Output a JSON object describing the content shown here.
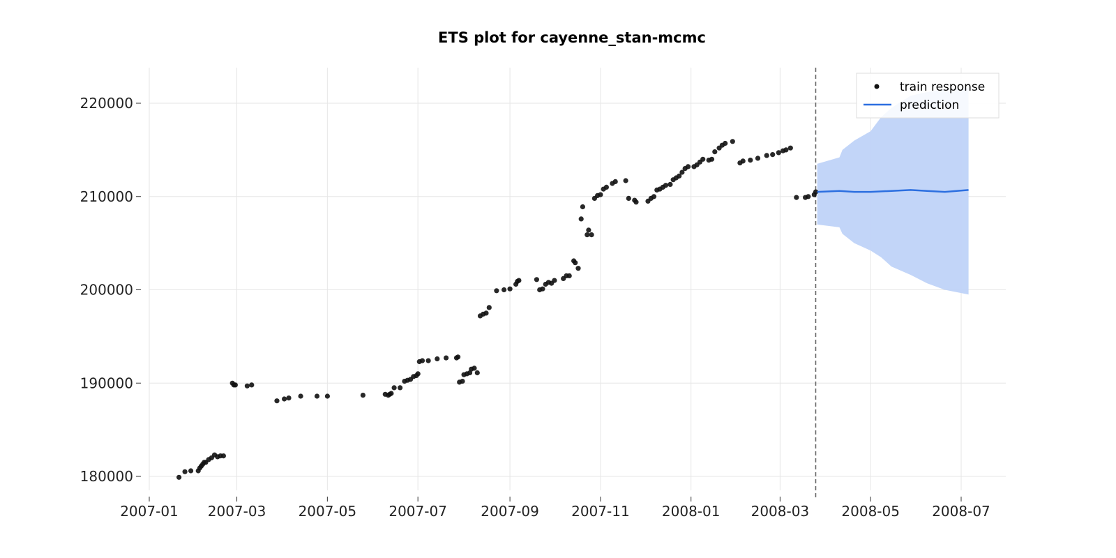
{
  "chart_data": {
    "type": "scatter",
    "title": "ETS plot for cayenne_stan-mcmc",
    "xlabel": "",
    "ylabel": "",
    "x_axis": "date",
    "xlim": [
      "2007-01-01",
      "2008-08-01"
    ],
    "ylim": [
      178000,
      224000
    ],
    "x_ticks": [
      "2007-01",
      "2007-03",
      "2007-05",
      "2007-07",
      "2007-09",
      "2007-11",
      "2008-01",
      "2008-03",
      "2008-05",
      "2008-07"
    ],
    "y_ticks": [
      180000,
      190000,
      200000,
      210000,
      220000
    ],
    "grid": true,
    "legend": {
      "position": "top-right",
      "entries": [
        "train response",
        "prediction"
      ]
    },
    "forecast_start": "2008-03-25",
    "colors": {
      "train": "#111111",
      "prediction": "#2c6fe0",
      "interval": "#bfd3f8",
      "forecast_line": "#666666"
    },
    "series": [
      {
        "name": "train response",
        "kind": "scatter",
        "points": [
          [
            "2007-01-21",
            179900
          ],
          [
            "2007-01-25",
            180500
          ],
          [
            "2007-01-29",
            180600
          ],
          [
            "2007-02-03",
            180600
          ],
          [
            "2007-02-04",
            180900
          ],
          [
            "2007-02-05",
            181100
          ],
          [
            "2007-02-06",
            181300
          ],
          [
            "2007-02-07",
            181500
          ],
          [
            "2007-02-08",
            181500
          ],
          [
            "2007-02-10",
            181800
          ],
          [
            "2007-02-12",
            182000
          ],
          [
            "2007-02-14",
            182300
          ],
          [
            "2007-02-16",
            182100
          ],
          [
            "2007-02-18",
            182200
          ],
          [
            "2007-02-20",
            182200
          ],
          [
            "2007-02-26",
            190000
          ],
          [
            "2007-02-27",
            189800
          ],
          [
            "2007-02-28",
            189800
          ],
          [
            "2007-03-08",
            189700
          ],
          [
            "2007-03-11",
            189800
          ],
          [
            "2007-03-28",
            188100
          ],
          [
            "2007-04-02",
            188300
          ],
          [
            "2007-04-05",
            188400
          ],
          [
            "2007-04-13",
            188600
          ],
          [
            "2007-04-24",
            188600
          ],
          [
            "2007-05-01",
            188600
          ],
          [
            "2007-05-25",
            188700
          ],
          [
            "2007-06-09",
            188800
          ],
          [
            "2007-06-11",
            188700
          ],
          [
            "2007-06-12",
            188800
          ],
          [
            "2007-06-13",
            188900
          ],
          [
            "2007-06-15",
            189500
          ],
          [
            "2007-06-19",
            189500
          ],
          [
            "2007-06-22",
            190200
          ],
          [
            "2007-06-24",
            190300
          ],
          [
            "2007-06-26",
            190400
          ],
          [
            "2007-06-28",
            190700
          ],
          [
            "2007-06-30",
            190800
          ],
          [
            "2007-07-01",
            191000
          ],
          [
            "2007-07-02",
            192300
          ],
          [
            "2007-07-04",
            192400
          ],
          [
            "2007-07-08",
            192400
          ],
          [
            "2007-07-14",
            192600
          ],
          [
            "2007-07-20",
            192700
          ],
          [
            "2007-07-27",
            192700
          ],
          [
            "2007-07-28",
            192800
          ],
          [
            "2007-07-29",
            190100
          ],
          [
            "2007-07-31",
            190200
          ],
          [
            "2007-08-01",
            190900
          ],
          [
            "2007-08-03",
            191000
          ],
          [
            "2007-08-05",
            191100
          ],
          [
            "2007-08-06",
            191500
          ],
          [
            "2007-08-08",
            191600
          ],
          [
            "2007-08-10",
            191100
          ],
          [
            "2007-08-12",
            197200
          ],
          [
            "2007-08-14",
            197400
          ],
          [
            "2007-08-16",
            197500
          ],
          [
            "2007-08-18",
            198100
          ],
          [
            "2007-08-23",
            199900
          ],
          [
            "2007-08-28",
            200000
          ],
          [
            "2007-09-01",
            200100
          ],
          [
            "2007-09-05",
            200600
          ],
          [
            "2007-09-06",
            200900
          ],
          [
            "2007-09-07",
            201000
          ],
          [
            "2007-09-19",
            201100
          ],
          [
            "2007-09-21",
            200000
          ],
          [
            "2007-09-23",
            200100
          ],
          [
            "2007-09-25",
            200600
          ],
          [
            "2007-09-27",
            200800
          ],
          [
            "2007-09-29",
            200700
          ],
          [
            "2007-10-01",
            201000
          ],
          [
            "2007-10-07",
            201200
          ],
          [
            "2007-10-09",
            201500
          ],
          [
            "2007-10-11",
            201500
          ],
          [
            "2007-10-14",
            203100
          ],
          [
            "2007-10-15",
            202900
          ],
          [
            "2007-10-17",
            202300
          ],
          [
            "2007-10-19",
            207600
          ],
          [
            "2007-10-20",
            208900
          ],
          [
            "2007-10-23",
            205900
          ],
          [
            "2007-10-24",
            206400
          ],
          [
            "2007-10-26",
            205900
          ],
          [
            "2007-10-28",
            209800
          ],
          [
            "2007-10-30",
            210100
          ],
          [
            "2007-11-01",
            210200
          ],
          [
            "2007-11-03",
            210800
          ],
          [
            "2007-11-05",
            211000
          ],
          [
            "2007-11-09",
            211400
          ],
          [
            "2007-11-11",
            211600
          ],
          [
            "2007-11-18",
            211700
          ],
          [
            "2007-11-20",
            209800
          ],
          [
            "2007-11-24",
            209600
          ],
          [
            "2007-11-25",
            209400
          ],
          [
            "2007-12-03",
            209500
          ],
          [
            "2007-12-05",
            209800
          ],
          [
            "2007-12-07",
            210000
          ],
          [
            "2007-12-09",
            210700
          ],
          [
            "2007-12-11",
            210800
          ],
          [
            "2007-12-13",
            211000
          ],
          [
            "2007-12-15",
            211200
          ],
          [
            "2007-12-18",
            211300
          ],
          [
            "2007-12-20",
            211800
          ],
          [
            "2007-12-22",
            212000
          ],
          [
            "2007-12-24",
            212200
          ],
          [
            "2007-12-26",
            212600
          ],
          [
            "2007-12-28",
            213000
          ],
          [
            "2007-12-30",
            213200
          ],
          [
            "2008-01-03",
            213200
          ],
          [
            "2008-01-05",
            213400
          ],
          [
            "2008-01-07",
            213700
          ],
          [
            "2008-01-09",
            214000
          ],
          [
            "2008-01-13",
            213900
          ],
          [
            "2008-01-15",
            214000
          ],
          [
            "2008-01-17",
            214800
          ],
          [
            "2008-01-20",
            215200
          ],
          [
            "2008-01-22",
            215500
          ],
          [
            "2008-01-24",
            215700
          ],
          [
            "2008-01-29",
            215900
          ],
          [
            "2008-02-03",
            213600
          ],
          [
            "2008-02-05",
            213800
          ],
          [
            "2008-02-10",
            213900
          ],
          [
            "2008-02-15",
            214100
          ],
          [
            "2008-02-21",
            214400
          ],
          [
            "2008-02-25",
            214500
          ],
          [
            "2008-02-29",
            214700
          ],
          [
            "2008-03-03",
            214900
          ],
          [
            "2008-03-05",
            215000
          ],
          [
            "2008-03-08",
            215200
          ],
          [
            "2008-03-12",
            209900
          ],
          [
            "2008-03-18",
            209900
          ],
          [
            "2008-03-20",
            210000
          ],
          [
            "2008-03-24",
            210200
          ],
          [
            "2008-03-25",
            210500
          ]
        ]
      },
      {
        "name": "prediction",
        "kind": "line",
        "points": [
          [
            "2008-03-26",
            210500
          ],
          [
            "2008-04-10",
            210600
          ],
          [
            "2008-04-20",
            210500
          ],
          [
            "2008-05-01",
            210500
          ],
          [
            "2008-05-15",
            210600
          ],
          [
            "2008-05-28",
            210700
          ],
          [
            "2008-06-08",
            210600
          ],
          [
            "2008-06-20",
            210500
          ],
          [
            "2008-07-06",
            210700
          ]
        ]
      }
    ],
    "interval": {
      "name": "prediction interval",
      "points": [
        [
          "2008-03-26",
          213500,
          207000
        ],
        [
          "2008-04-10",
          214200,
          206700
        ],
        [
          "2008-04-12",
          215000,
          206000
        ],
        [
          "2008-04-20",
          216000,
          205000
        ],
        [
          "2008-05-01",
          217000,
          204200
        ],
        [
          "2008-05-08",
          218500,
          203500
        ],
        [
          "2008-05-15",
          219500,
          202500
        ],
        [
          "2008-05-28",
          220800,
          201600
        ],
        [
          "2008-06-08",
          221200,
          200700
        ],
        [
          "2008-06-20",
          221500,
          200000
        ],
        [
          "2008-07-06",
          221600,
          199500
        ]
      ]
    }
  }
}
